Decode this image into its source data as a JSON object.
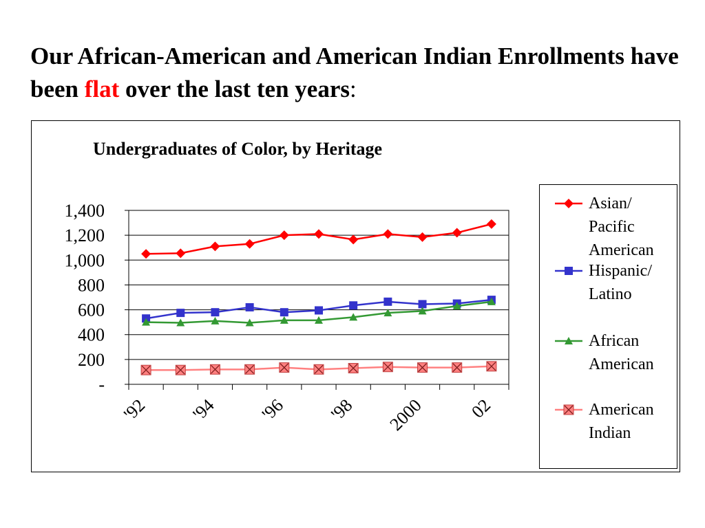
{
  "headline": {
    "part1": "Our African-American and American Indian Enrollments have been ",
    "highlight": "flat",
    "part2": " over the last ten years",
    "colon": ":"
  },
  "chart_data": {
    "type": "line",
    "title": "Undergraduates of Color, by Heritage",
    "xlabel": "",
    "ylabel": "",
    "x": [
      "1992",
      "1993",
      "1994",
      "1995",
      "1996",
      "1997",
      "1998",
      "1999",
      "2000",
      "2001",
      "2002"
    ],
    "xtick_labels": [
      "'92",
      "'94",
      "'96",
      "'98",
      "2000",
      "02"
    ],
    "ylim": [
      0,
      1400
    ],
    "yticks": [
      {
        "value": 0,
        "label": "-"
      },
      {
        "value": 200,
        "label": "200"
      },
      {
        "value": 400,
        "label": "400"
      },
      {
        "value": 600,
        "label": "600"
      },
      {
        "value": 800,
        "label": "800"
      },
      {
        "value": 1000,
        "label": "1,000"
      },
      {
        "value": 1200,
        "label": "1,200"
      },
      {
        "value": 1400,
        "label": "1,400"
      }
    ],
    "grid": true,
    "legend_position": "right",
    "series": [
      {
        "name": "Asian/ Pacific American",
        "color": "#ff0000",
        "marker": "diamond",
        "values": [
          1050,
          1055,
          1110,
          1130,
          1200,
          1210,
          1165,
          1210,
          1185,
          1220,
          1290
        ]
      },
      {
        "name": "Hispanic/ Latino",
        "color": "#3333cc",
        "marker": "square",
        "values": [
          530,
          575,
          580,
          620,
          580,
          595,
          635,
          665,
          645,
          650,
          680
        ]
      },
      {
        "name": "African American",
        "color": "#339933",
        "marker": "triangle",
        "values": [
          500,
          495,
          510,
          495,
          515,
          515,
          540,
          575,
          590,
          630,
          665
        ]
      },
      {
        "name": "American Indian",
        "color": "#ff8080",
        "marker": "x-square",
        "values": [
          115,
          115,
          120,
          120,
          135,
          120,
          130,
          140,
          135,
          135,
          145
        ]
      }
    ]
  },
  "legend": {
    "items": [
      {
        "lines": [
          "Asian/",
          "Pacific",
          "American"
        ]
      },
      {
        "lines": [
          "Hispanic/",
          "Latino"
        ]
      },
      {
        "lines": [
          "African",
          "American"
        ]
      },
      {
        "lines": [
          "American",
          "Indian"
        ]
      }
    ]
  }
}
